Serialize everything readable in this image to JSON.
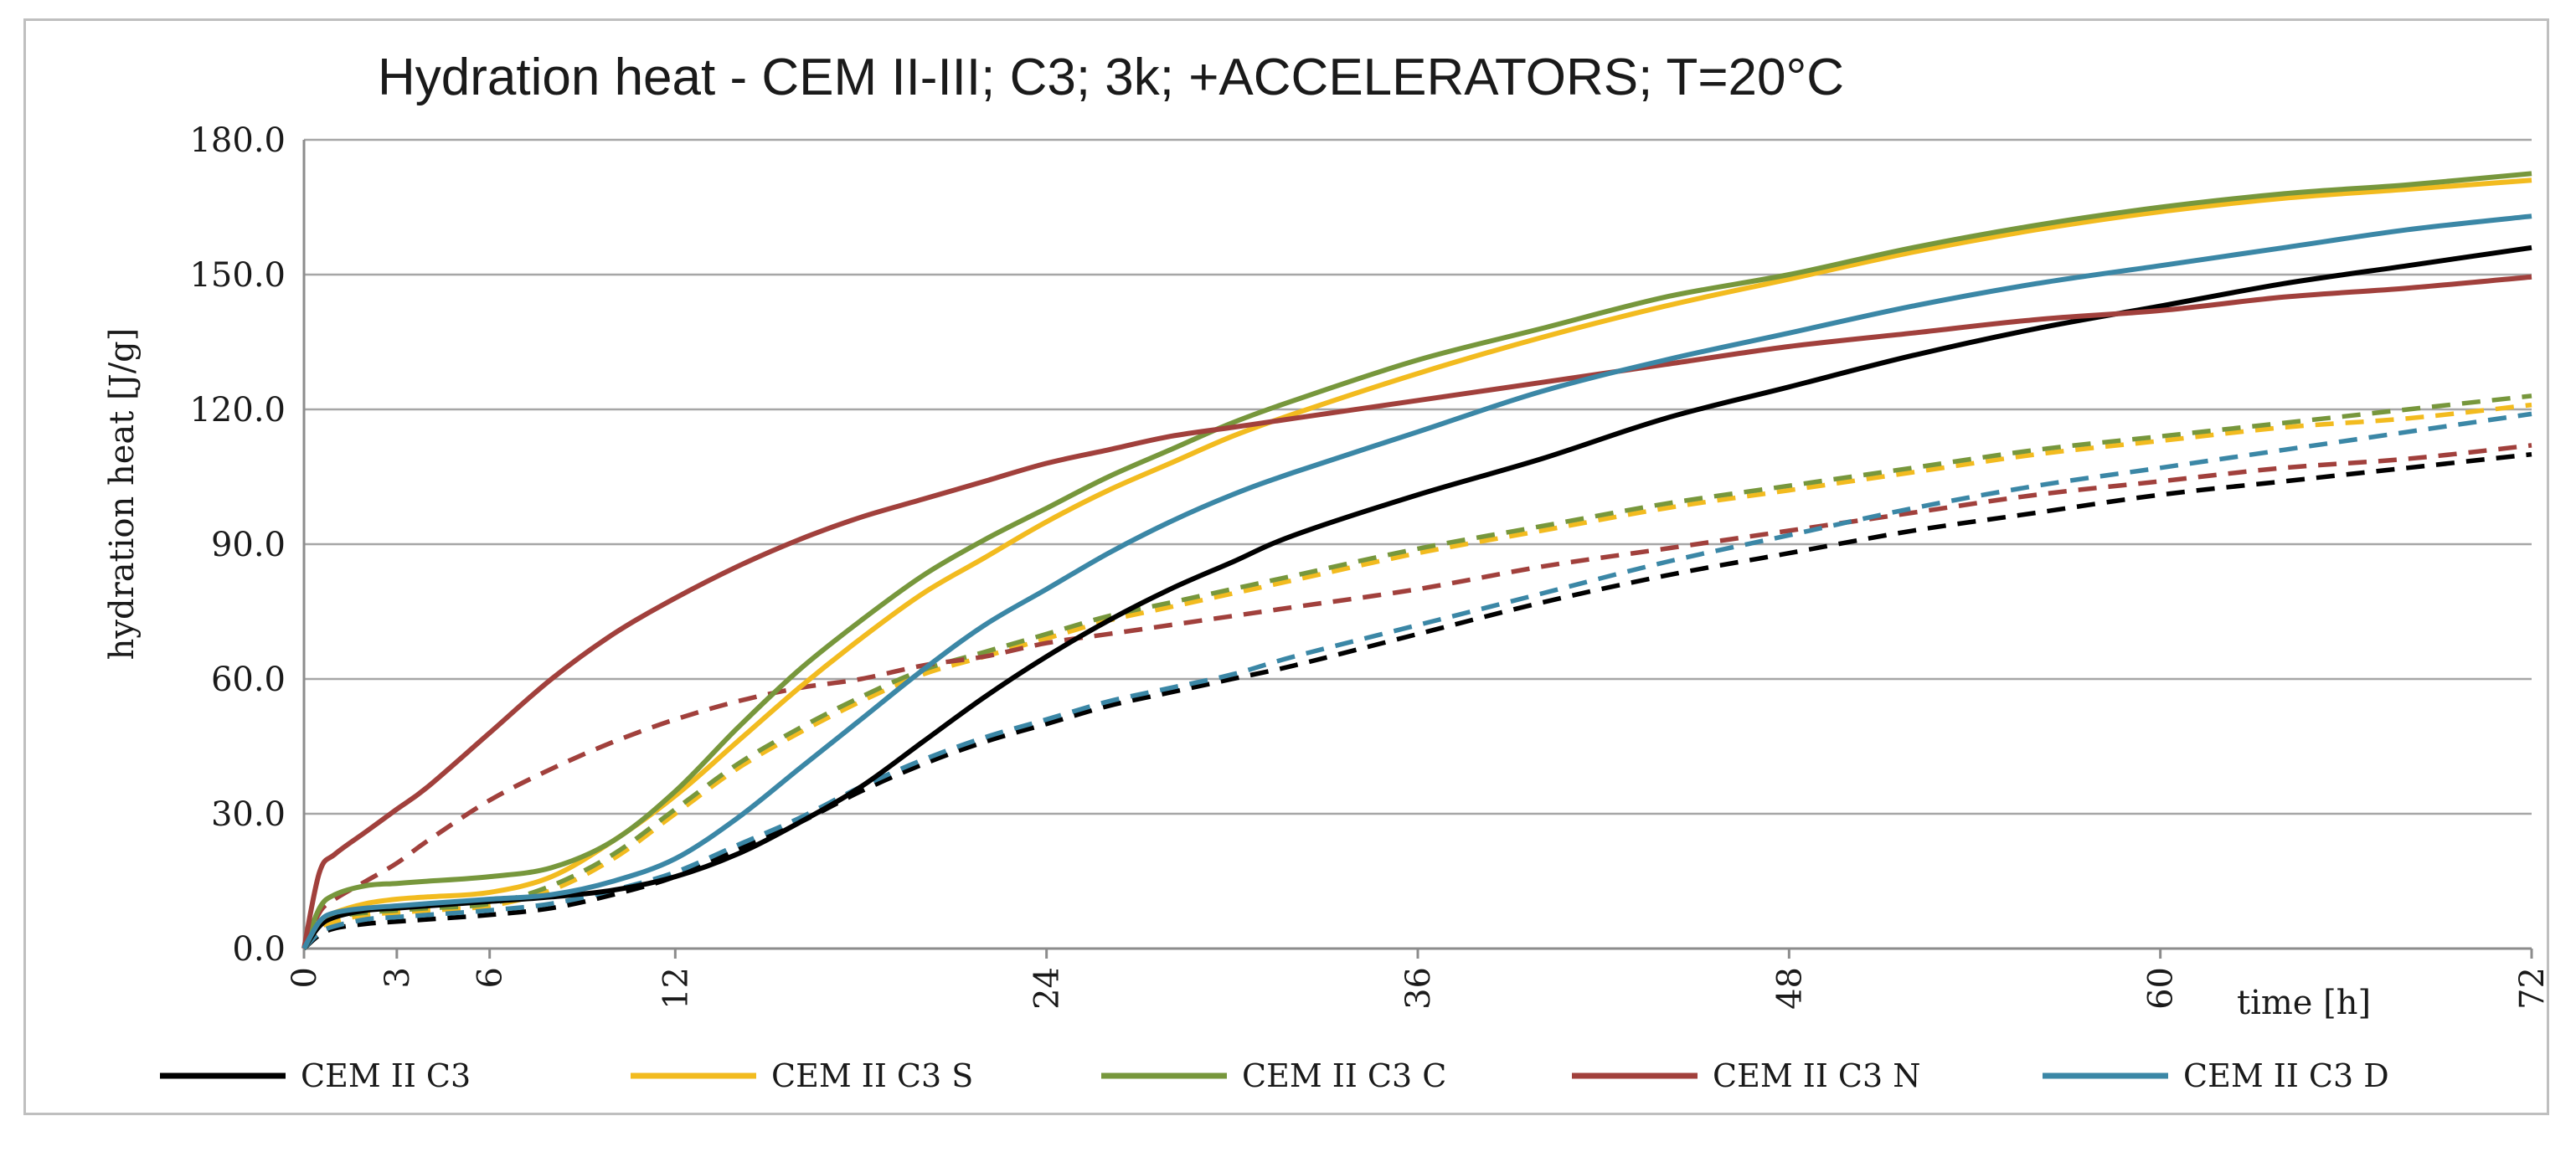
{
  "chart_data": {
    "type": "line",
    "title": "Hydration heat - CEM II-III; C3; 3k; +ACCELERATORS; T=20°C",
    "xlabel": "time [h]",
    "ylabel": "hydration heat [J/g]",
    "xlim": [
      0,
      72
    ],
    "ylim": [
      0,
      180
    ],
    "xticks": [
      0,
      3,
      6,
      12,
      24,
      36,
      48,
      60,
      72
    ],
    "xtick_labels": [
      "0",
      "3",
      "6",
      "12",
      "24",
      "36",
      "48",
      "60",
      "72"
    ],
    "yticks": [
      0,
      30,
      60,
      90,
      120,
      150,
      180
    ],
    "ytick_labels": [
      "0.0",
      "30.0",
      "60.0",
      "90.0",
      "120.0",
      "150.0",
      "180.0"
    ],
    "grid": "horizontal",
    "legend_position": "bottom",
    "x": [
      0,
      0.5,
      1,
      2,
      3,
      4,
      6,
      8,
      10,
      12,
      14,
      16,
      18,
      20,
      22,
      24,
      26,
      28,
      30,
      32,
      36,
      40,
      44,
      48,
      52,
      56,
      60,
      64,
      68,
      72
    ],
    "series": [
      {
        "name": "CEM II C3",
        "color": "#000000",
        "dash": "solid",
        "show_in_legend": true,
        "values": [
          0,
          5,
          7,
          8.5,
          9,
          9.5,
          10.5,
          11.5,
          13,
          16,
          21,
          28,
          36,
          46,
          56,
          65,
          73,
          80,
          86,
          92,
          101,
          109,
          118,
          125,
          132,
          138,
          143,
          148,
          152,
          156
        ]
      },
      {
        "name": "CEM II C3 S",
        "color": "#f2bb1f",
        "dash": "solid",
        "show_in_legend": true,
        "values": [
          0,
          6,
          8,
          10,
          11,
          11.5,
          12.5,
          16,
          24,
          34,
          46,
          58,
          69,
          79,
          87,
          95,
          102,
          108,
          114,
          119,
          128,
          136,
          143,
          149,
          155,
          160,
          164,
          167,
          169,
          171
        ]
      },
      {
        "name": "CEM II C3 C",
        "color": "#77973c",
        "dash": "solid",
        "show_in_legend": true,
        "values": [
          0,
          9,
          12,
          14,
          14.5,
          15,
          16,
          18,
          24,
          35,
          49,
          62,
          73,
          83,
          91,
          98,
          105,
          111,
          117,
          122,
          131,
          138,
          145,
          150,
          156,
          161,
          165,
          168,
          170,
          172.5
        ]
      },
      {
        "name": "CEM II C3 N",
        "color": "#a1403c",
        "dash": "solid",
        "show_in_legend": true,
        "values": [
          0,
          17,
          21,
          26,
          31,
          36,
          48,
          60,
          70,
          78,
          85,
          91,
          96,
          100,
          104,
          108,
          111,
          114,
          116,
          118,
          122,
          126,
          130,
          134,
          137,
          140,
          142,
          145,
          147,
          149.5
        ]
      },
      {
        "name": "CEM II C3 D",
        "color": "#3b87a6",
        "dash": "solid",
        "show_in_legend": true,
        "values": [
          0,
          6,
          8,
          9,
          9.5,
          10,
          11,
          12,
          15,
          20,
          29,
          40,
          51,
          62,
          72,
          80,
          88,
          95,
          101,
          106,
          115,
          124,
          131,
          137,
          143,
          148,
          152,
          156,
          160,
          163
        ]
      },
      {
        "name": "CEM II C3 (dashed)",
        "color": "#000000",
        "dash": "dashed",
        "show_in_legend": false,
        "values": [
          0,
          3,
          4.5,
          5.5,
          6,
          6.5,
          7.5,
          9,
          12,
          16,
          22,
          28,
          35,
          41,
          46,
          50,
          54,
          57,
          60,
          63,
          70,
          77,
          83,
          88,
          93,
          97,
          101,
          104,
          107,
          110
        ]
      },
      {
        "name": "CEM II C3 S (dashed)",
        "color": "#f2bb1f",
        "dash": "dashed",
        "show_in_legend": false,
        "values": [
          0,
          4.5,
          6,
          7.5,
          8,
          8.5,
          9.5,
          13,
          20,
          30,
          40,
          48,
          55,
          61,
          65,
          69,
          73,
          76,
          79,
          82,
          88,
          93,
          98,
          102,
          106,
          110,
          113,
          116,
          118,
          121
        ]
      },
      {
        "name": "CEM II C3 C (dashed)",
        "color": "#77973c",
        "dash": "dashed",
        "show_in_legend": false,
        "values": [
          0,
          5,
          7,
          8,
          8.5,
          9,
          10,
          14,
          21,
          31,
          41,
          49,
          56,
          62,
          66,
          70,
          74,
          77,
          80,
          83,
          89,
          94,
          99,
          103,
          107,
          111,
          114,
          117,
          120,
          123
        ]
      },
      {
        "name": "CEM II C3 N (dashed)",
        "color": "#a1403c",
        "dash": "dashed",
        "show_in_legend": false,
        "values": [
          0,
          8,
          11,
          15,
          19,
          24,
          33,
          40,
          46,
          51,
          55,
          58,
          60,
          63,
          65,
          68,
          70,
          72,
          74,
          76,
          80,
          85,
          89,
          93,
          97,
          101,
          104,
          107,
          109,
          112
        ]
      },
      {
        "name": "CEM II C3 D (dashed)",
        "color": "#3b87a6",
        "dash": "dashed",
        "show_in_legend": false,
        "values": [
          0,
          3.5,
          5,
          6.5,
          7,
          7.5,
          8.5,
          10,
          13,
          17,
          23,
          29,
          36,
          42,
          47,
          51,
          55,
          58,
          61,
          65,
          72,
          79,
          86,
          92,
          98,
          103,
          107,
          111,
          115,
          119
        ]
      }
    ]
  }
}
